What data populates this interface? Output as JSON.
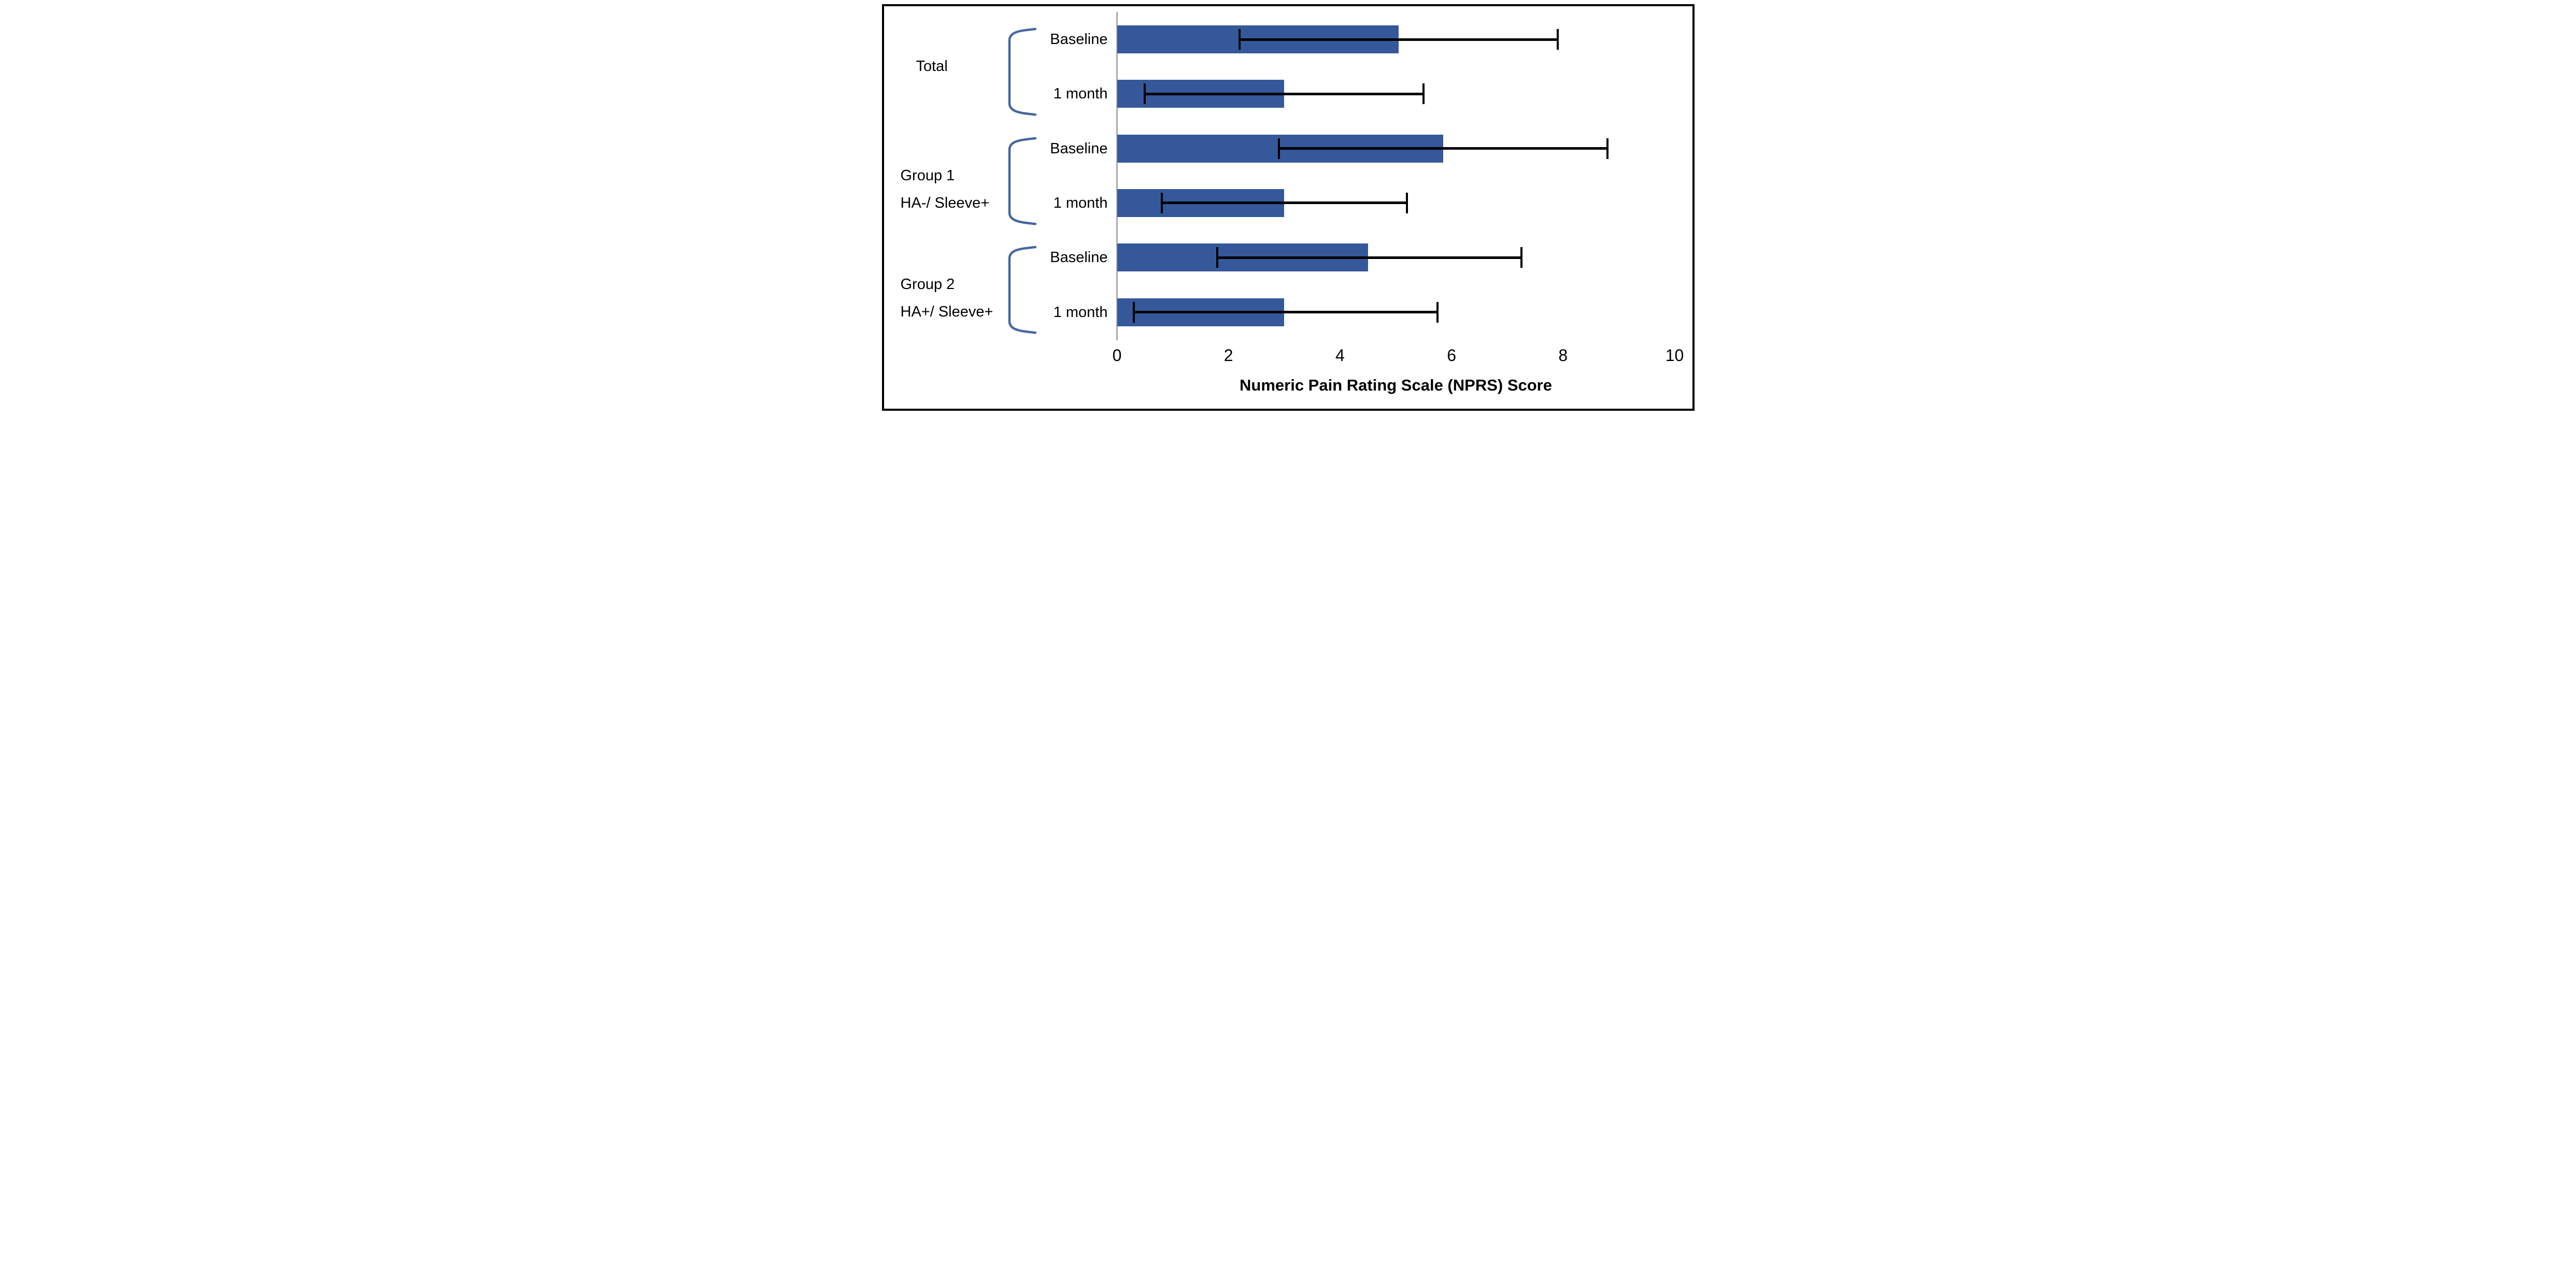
{
  "figure": {
    "background": "#ffffff",
    "frame_color": "#000000"
  },
  "chart_data": {
    "type": "bar",
    "orientation": "horizontal",
    "title": "",
    "xlabel": "Numeric Pain Rating Scale (NPRS) Score",
    "ylabel": "",
    "xlim": [
      0,
      10
    ],
    "xticks": [
      0,
      2,
      4,
      6,
      8,
      10
    ],
    "grid": false,
    "bar_color": "#35589B",
    "bracket_color": "#46679F",
    "axis_line_color": "#AAAAAA",
    "error_bar_color": "#000000",
    "groups": [
      {
        "label_lines": [
          "Total"
        ],
        "rows": [
          {
            "condition": "Baseline",
            "value": 5.05,
            "error_low": 2.2,
            "error_high": 7.9
          },
          {
            "condition": "1 month",
            "value": 3.0,
            "error_low": 0.5,
            "error_high": 5.5
          }
        ]
      },
      {
        "label_lines": [
          "Group 1",
          "HA-/ Sleeve+"
        ],
        "rows": [
          {
            "condition": "Baseline",
            "value": 5.85,
            "error_low": 2.9,
            "error_high": 8.8
          },
          {
            "condition": "1 month",
            "value": 3.0,
            "error_low": 0.8,
            "error_high": 5.2
          }
        ]
      },
      {
        "label_lines": [
          "Group 2",
          "HA+/ Sleeve+"
        ],
        "rows": [
          {
            "condition": "Baseline",
            "value": 4.5,
            "error_low": 1.8,
            "error_high": 7.25
          },
          {
            "condition": "1 month",
            "value": 3.0,
            "error_low": 0.3,
            "error_high": 5.75
          }
        ]
      }
    ]
  }
}
